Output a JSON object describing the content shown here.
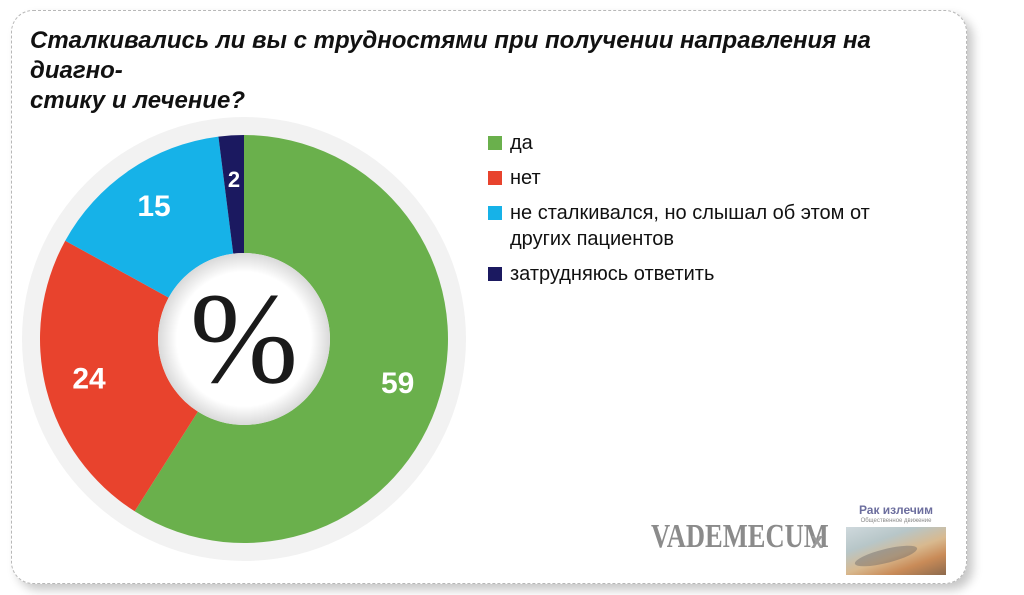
{
  "title": {
    "line1": "Сталкивались ли вы с трудностями при получении направления на диагно-",
    "line2": "стику и лечение?"
  },
  "center_symbol": "%",
  "chart_data": {
    "type": "pie",
    "style": "donut",
    "slices": [
      {
        "label": "да",
        "value": 59,
        "color": "#6ab04c"
      },
      {
        "label": "нет",
        "value": 24,
        "color": "#e8432d"
      },
      {
        "label": "не сталкивался, но слышал об этом  от\nдругих пациентов",
        "value": 15,
        "color": "#16b2e8"
      },
      {
        "label": "затрудняюсь ответить",
        "value": 2,
        "color": "#1b1960"
      }
    ],
    "legend_position": "right"
  },
  "footer": {
    "brand": "VADEMECUM",
    "separator": "x",
    "partner_name": "Рак излечим",
    "partner_subtitle": "Общественное движение"
  }
}
